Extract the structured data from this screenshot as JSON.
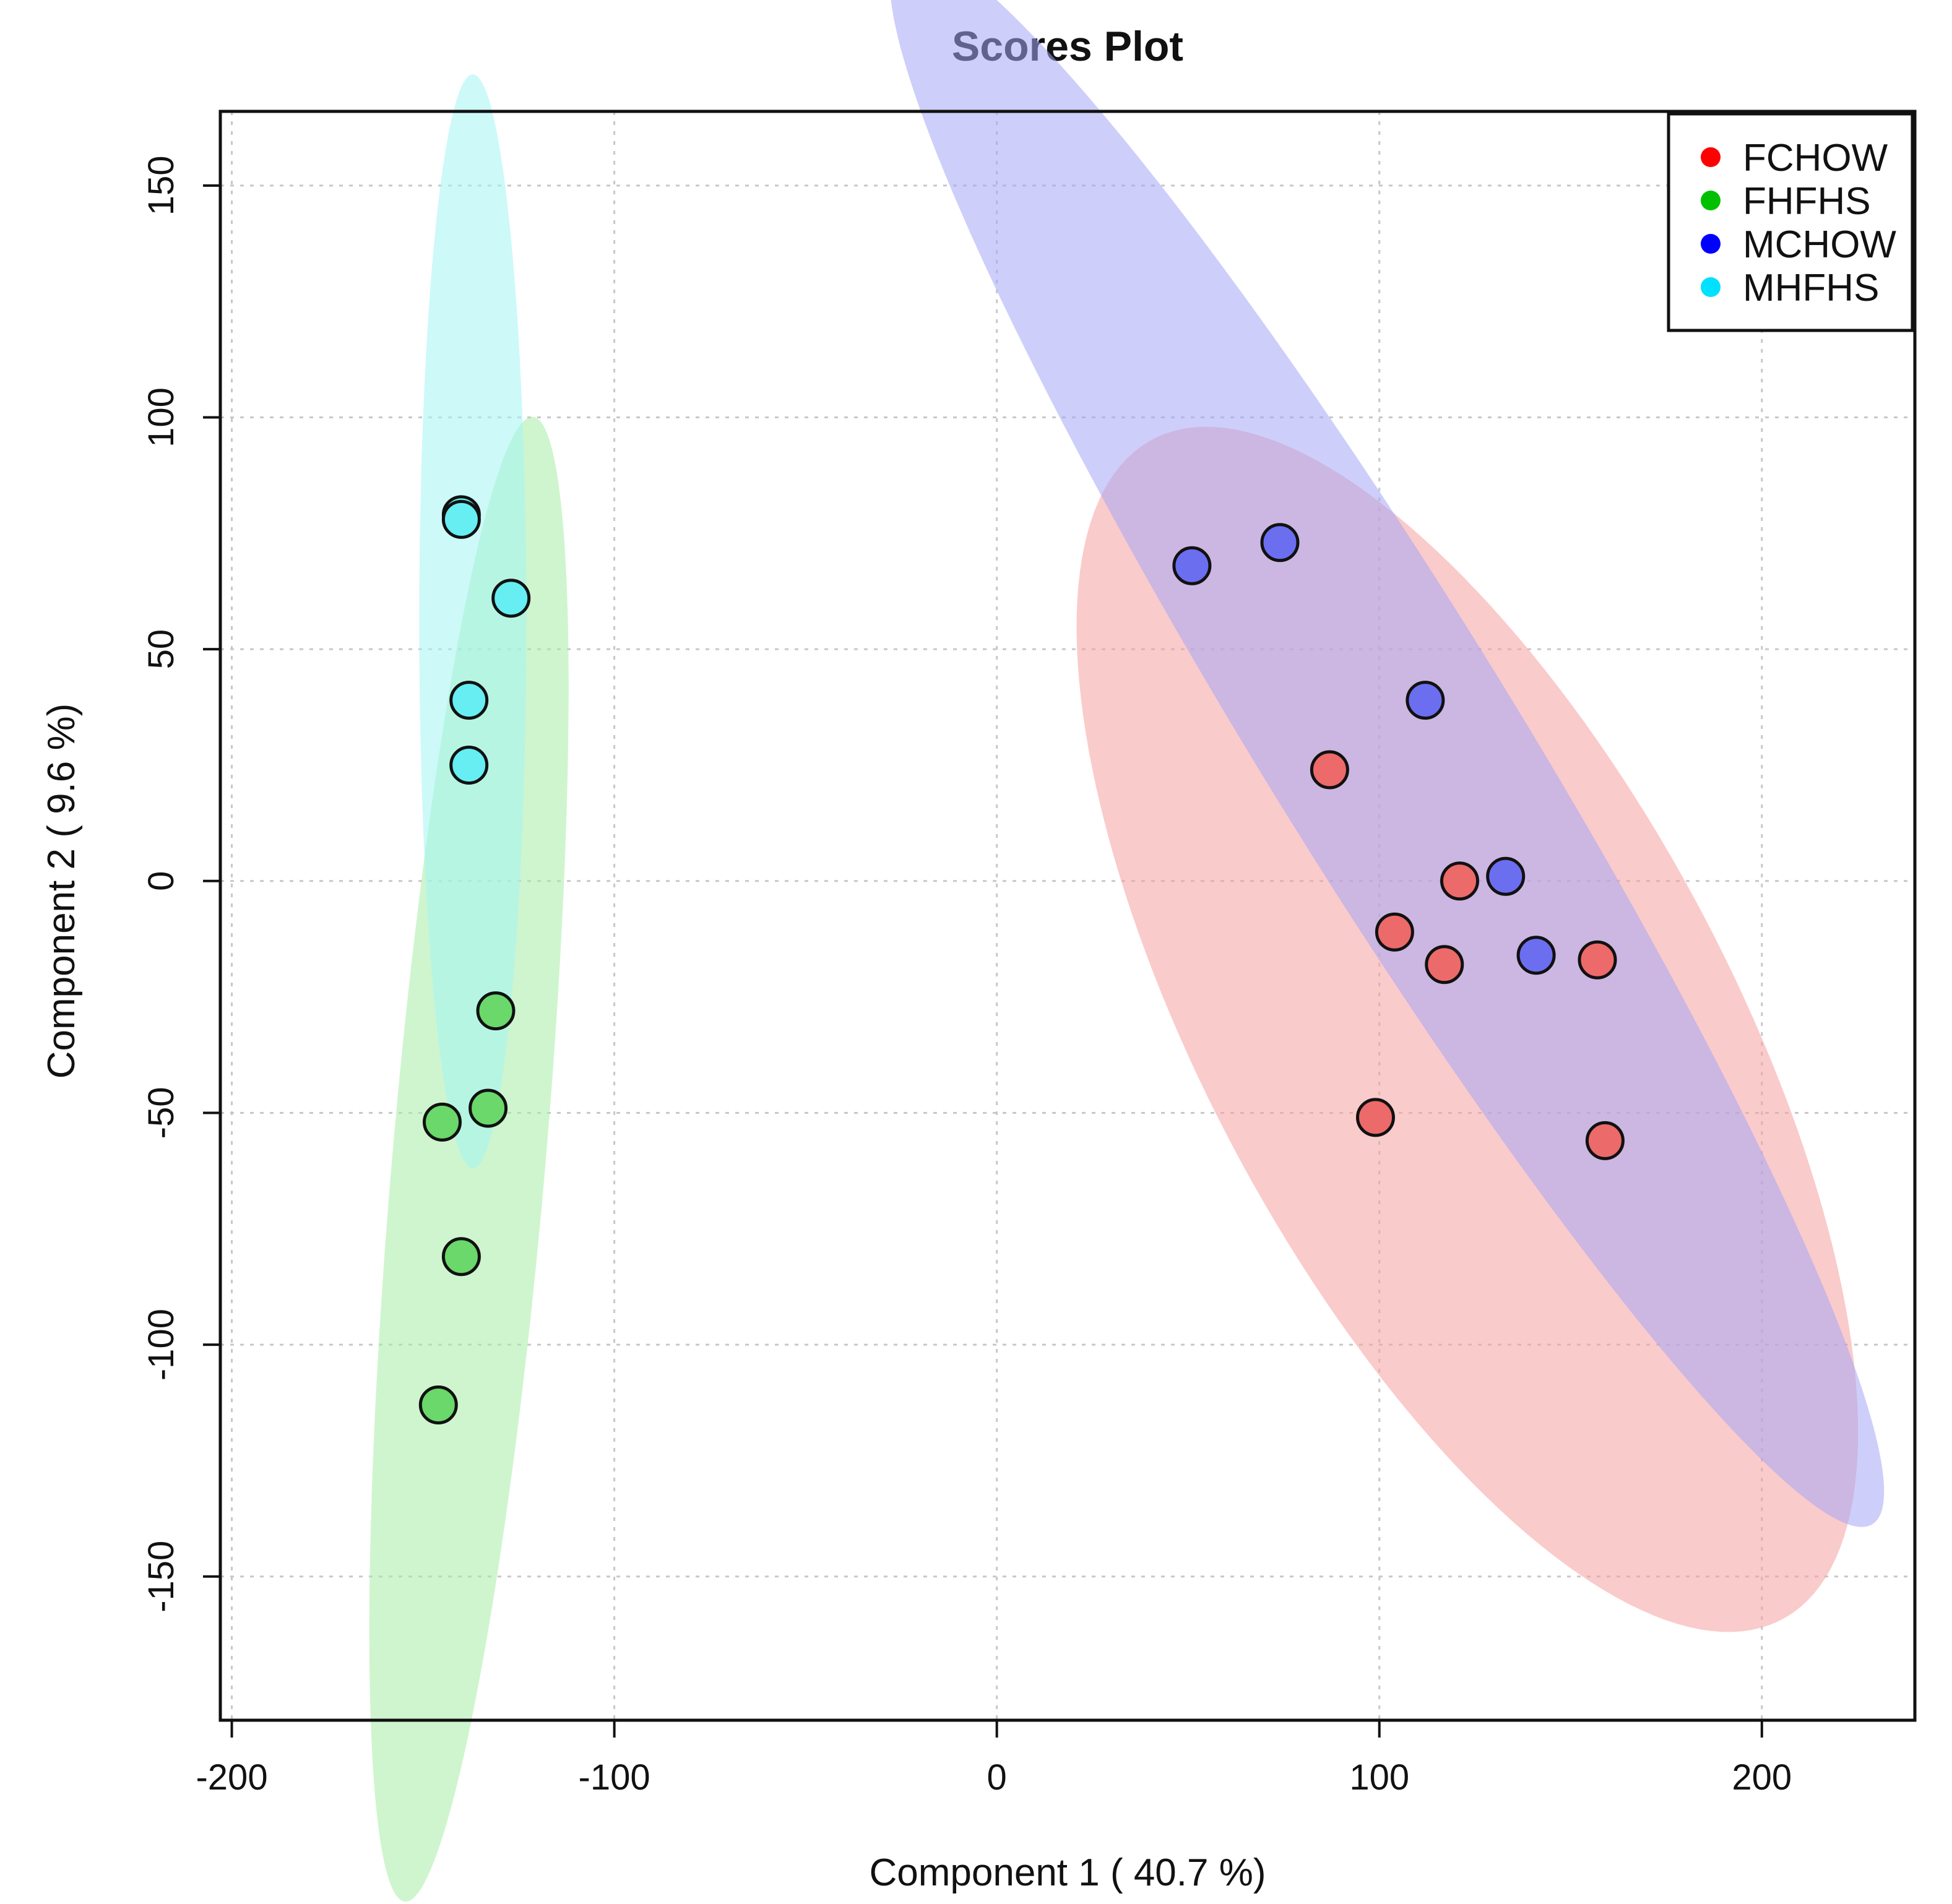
{
  "chart_data": {
    "type": "scatter",
    "title": "Scores Plot",
    "xlabel": "Component 1 ( 40.7 %)",
    "ylabel": "Component 2 ( 9.6 %)",
    "xlim": [
      -203,
      240
    ],
    "ylim": [
      -181,
      166
    ],
    "xticks": [
      -200,
      -100,
      0,
      100,
      200
    ],
    "yticks": [
      -150,
      -100,
      -50,
      0,
      50,
      100,
      150
    ],
    "xtick_labels": [
      "-200",
      "-100",
      "0",
      "100",
      "200"
    ],
    "ytick_labels": [
      "-150",
      "-100",
      "-50",
      "0",
      "50",
      "100",
      "150"
    ],
    "grid": true,
    "legend_position": "top-right",
    "series": [
      {
        "name": "FCHOW",
        "color": "#ff0000",
        "fill": "#ec6a6a",
        "ellipse_fill": "#f6a0a0",
        "points": [
          [
            87,
            24
          ],
          [
            121,
            0
          ],
          [
            104,
            -11
          ],
          [
            117,
            -18
          ],
          [
            157,
            -17
          ],
          [
            99,
            -51
          ],
          [
            159,
            -56
          ]
        ],
        "ellipse": {
          "cx": 123,
          "cy": -32,
          "a": 152,
          "b": 65,
          "angle_deg": -55
        }
      },
      {
        "name": "FHFHS",
        "color": "#00c000",
        "fill": "#6ad86a",
        "ellipse_fill": "#a8eca8",
        "points": [
          [
            -131,
            -28
          ],
          [
            -133,
            -49
          ],
          [
            -145,
            -52
          ],
          [
            -140,
            -81
          ],
          [
            -146,
            -113
          ]
        ],
        "ellipse": {
          "cx": -138,
          "cy": -60,
          "a": 161,
          "b": 20,
          "angle_deg": 84
        }
      },
      {
        "name": "MCHOW",
        "color": "#0000ff",
        "fill": "#6c6ef0",
        "ellipse_fill": "#a6a6f6",
        "points": [
          [
            51,
            68
          ],
          [
            74,
            73
          ],
          [
            112,
            39
          ],
          [
            133,
            1
          ],
          [
            141,
            -16
          ]
        ],
        "ellipse": {
          "cx": 102,
          "cy": 31,
          "a": 212,
          "b": 31,
          "angle_deg": -53
        }
      },
      {
        "name": "MHFHS",
        "color": "#00e0ff",
        "fill": "#66eef2",
        "ellipse_fill": "#a4f4f4",
        "points": [
          [
            -140,
            79
          ],
          [
            -140,
            78
          ],
          [
            -127,
            61
          ],
          [
            -138,
            39
          ],
          [
            -138,
            25
          ]
        ],
        "ellipse": {
          "cx": -137,
          "cy": 56,
          "a": 118,
          "b": 14,
          "angle_deg": 90
        }
      }
    ]
  }
}
